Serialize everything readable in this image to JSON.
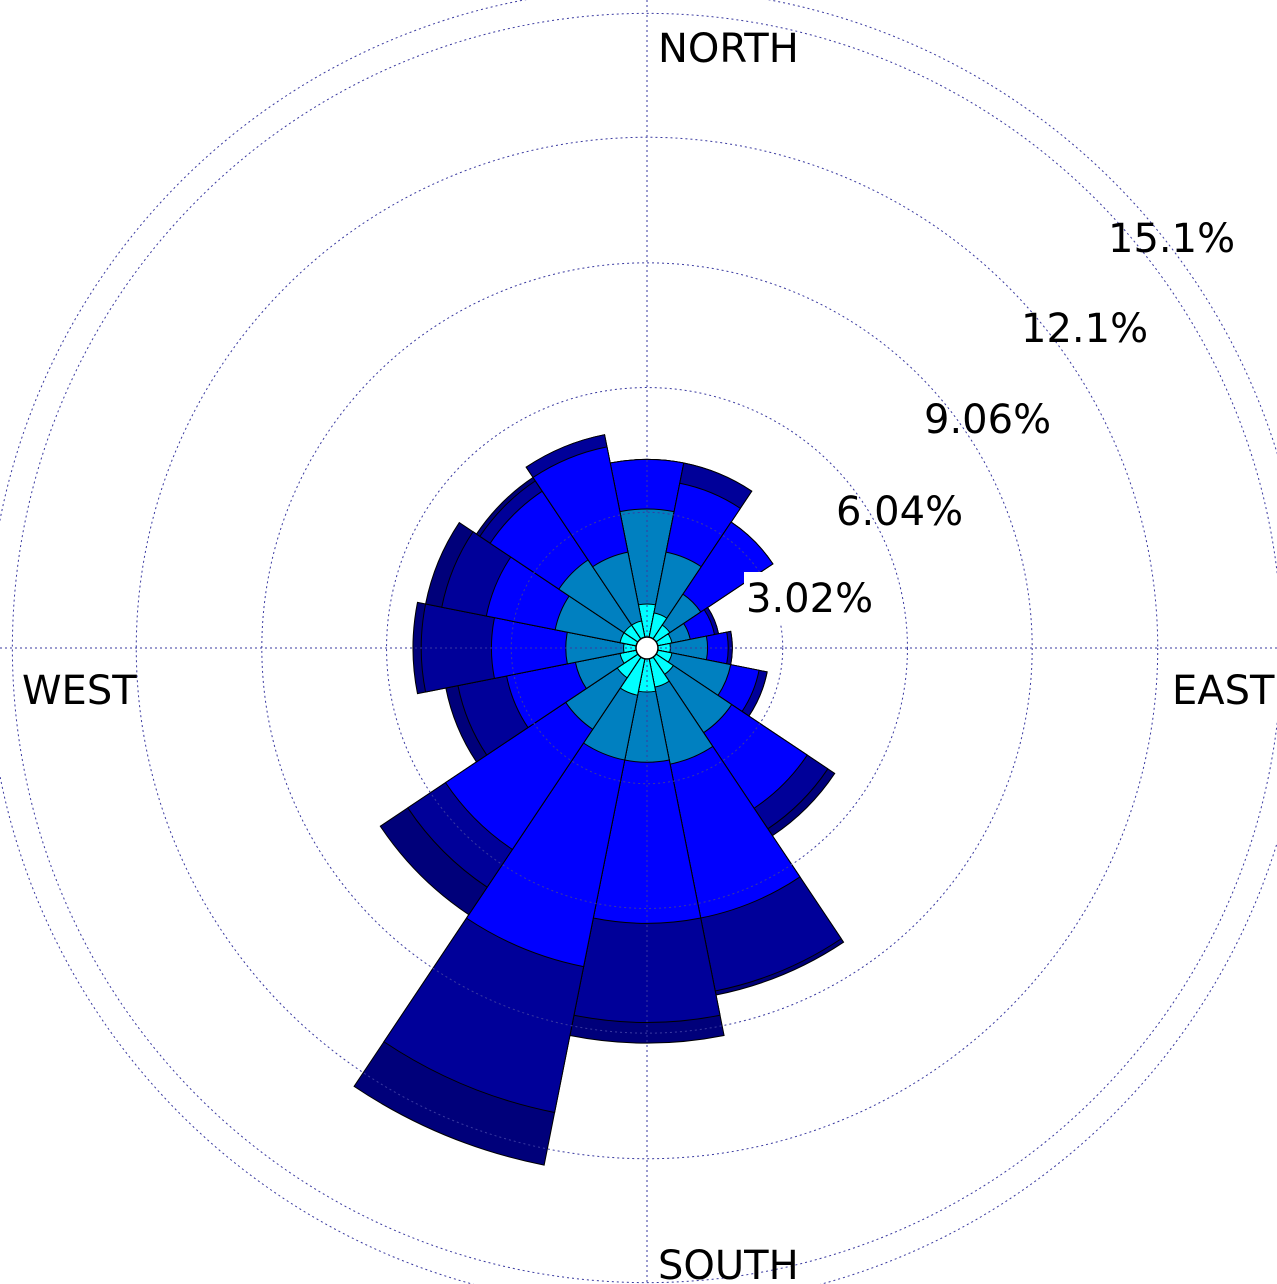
{
  "chart_data": {
    "type": "wind-rose",
    "direction_labels": {
      "north": "NORTH",
      "east": "EAST",
      "south": "SOUTH",
      "west": "WEST"
    },
    "ring_labels": [
      "3.02%",
      "6.04%",
      "9.06%",
      "12.1%",
      "15.1%"
    ],
    "ring_values": [
      3.02,
      6.04,
      9.06,
      12.1,
      15.1
    ],
    "rlim": [
      0,
      15.1
    ],
    "sectors_deg": [
      0,
      22.5,
      45,
      67.5,
      90,
      112.5,
      135,
      157.5,
      180,
      202.5,
      225,
      247.5,
      270,
      292.5,
      315,
      337.5
    ],
    "colors": [
      "#00FFFF",
      "#0080C0",
      "#0000FF",
      "#000099",
      "#00007A"
    ],
    "cumulative_percent": [
      [
        0.8,
        3.1,
        4.3,
        4.3,
        4.3
      ],
      [
        0.6,
        2.1,
        3.8,
        4.3,
        4.3
      ],
      [
        0.4,
        1.3,
        3.4,
        3.4,
        3.4
      ],
      [
        0.35,
        0.8,
        1.4,
        1.5,
        1.5
      ],
      [
        0.3,
        1.2,
        1.7,
        1.8,
        1.8
      ],
      [
        0.35,
        1.8,
        2.5,
        2.7,
        2.7
      ],
      [
        0.5,
        2.2,
        4.4,
        5.0,
        5.2
      ],
      [
        0.7,
        2.6,
        6.4,
        8.2,
        8.3
      ],
      [
        0.8,
        2.5,
        6.4,
        8.8,
        9.3
      ],
      [
        0.9,
        2.5,
        7.6,
        11.2,
        12.5
      ],
      [
        0.6,
        2.1,
        5.6,
        6.7,
        7.5
      ],
      [
        0.4,
        1.5,
        3.2,
        4.4,
        4.7
      ],
      [
        0.3,
        1.7,
        3.5,
        5.2,
        5.4
      ],
      [
        0.4,
        2.0,
        3.7,
        4.8,
        5.2
      ],
      [
        0.4,
        2.3,
        4.3,
        4.6,
        4.7
      ],
      [
        0.4,
        2.1,
        4.7,
        5.0,
        5.0
      ]
    ]
  }
}
